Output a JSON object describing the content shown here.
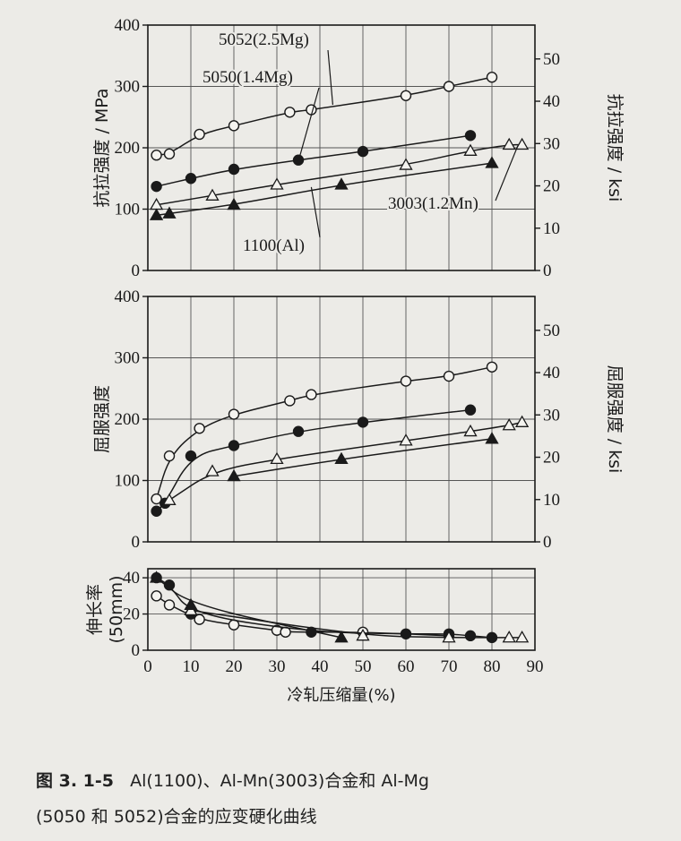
{
  "chart_data": [
    {
      "type": "line",
      "ylabel": "抗拉强度 / MPa",
      "ylabel_right": "抗拉强度 / ksi",
      "xlim": [
        0,
        90
      ],
      "ylim": [
        0,
        400
      ],
      "yticks": [
        0,
        100,
        200,
        300,
        400
      ],
      "ylim_right": [
        0,
        58
      ],
      "yticks_right": [
        0,
        10,
        20,
        30,
        40,
        50
      ],
      "grid": true,
      "series": [
        {
          "name": "5052(2.5Mg)",
          "marker": "open-circle",
          "x": [
            2,
            5,
            12,
            20,
            33,
            38,
            60,
            70,
            80
          ],
          "y": [
            188,
            190,
            222,
            236,
            258,
            262,
            285,
            300,
            315
          ]
        },
        {
          "name": "5050(1.4Mg)",
          "marker": "filled-circle",
          "x": [
            2,
            10,
            20,
            35,
            50,
            75
          ],
          "y": [
            137,
            150,
            165,
            180,
            194,
            220
          ]
        },
        {
          "name": "3003(1.2Mn)",
          "marker": "open-triangle",
          "x": [
            2,
            15,
            30,
            60,
            75,
            84,
            87
          ],
          "y": [
            107,
            122,
            140,
            172,
            195,
            205,
            205
          ]
        },
        {
          "name": "1100(Al)",
          "marker": "filled-triangle",
          "x": [
            2,
            5,
            20,
            45,
            80
          ],
          "y": [
            90,
            93,
            107,
            140,
            175
          ]
        }
      ]
    },
    {
      "type": "line",
      "ylabel": "屈服强度",
      "ylabel_right": "屈服强度 / ksi",
      "xlim": [
        0,
        90
      ],
      "ylim": [
        0,
        400
      ],
      "yticks": [
        0,
        100,
        200,
        300,
        400
      ],
      "ylim_right": [
        0,
        58
      ],
      "yticks_right": [
        0,
        10,
        20,
        30,
        40,
        50
      ],
      "grid": true,
      "series": [
        {
          "marker": "open-circle",
          "x": [
            2,
            5,
            12,
            20,
            33,
            38,
            60,
            70,
            80
          ],
          "y": [
            70,
            140,
            185,
            208,
            230,
            240,
            262,
            270,
            285
          ]
        },
        {
          "marker": "filled-circle",
          "x": [
            2,
            4,
            10,
            20,
            35,
            50,
            75
          ],
          "y": [
            50,
            63,
            140,
            157,
            180,
            195,
            215
          ]
        },
        {
          "marker": "open-triangle",
          "x": [
            5,
            15,
            30,
            60,
            75,
            84,
            87
          ],
          "y": [
            68,
            115,
            135,
            165,
            180,
            190,
            195
          ]
        },
        {
          "marker": "filled-triangle",
          "x": [
            20,
            45,
            80
          ],
          "y": [
            107,
            135,
            168
          ]
        }
      ]
    },
    {
      "type": "line",
      "ylabel": "伸长率",
      "ylabel2": "(50mm)",
      "xlabel": "冷轧压缩量(%)",
      "xlim": [
        0,
        90
      ],
      "xticks": [
        0,
        10,
        20,
        30,
        40,
        50,
        60,
        70,
        80,
        90
      ],
      "ylim": [
        0,
        45
      ],
      "yticks": [
        0,
        20,
        40
      ],
      "grid": true,
      "series": [
        {
          "marker": "open-circle",
          "x": [
            2,
            5,
            12,
            20,
            30,
            32,
            50,
            70
          ],
          "y": [
            30,
            25,
            17,
            14,
            11,
            10,
            10,
            8
          ]
        },
        {
          "marker": "filled-circle",
          "x": [
            2,
            5,
            10,
            38,
            60,
            70,
            75,
            80
          ],
          "y": [
            40,
            36,
            20,
            10,
            9,
            9,
            8,
            7
          ]
        },
        {
          "marker": "open-triangle",
          "x": [
            10,
            50,
            70,
            84,
            87
          ],
          "y": [
            22,
            8,
            7,
            7,
            7
          ]
        },
        {
          "marker": "filled-triangle",
          "x": [
            2,
            10,
            45
          ],
          "y": [
            40,
            25,
            7
          ]
        }
      ]
    }
  ],
  "caption": {
    "line1_fig": "图 3. 1-5",
    "line1_text": "Al(1100)、Al-Mn(3003)合金和 Al-Mg",
    "line2_text": "(5050 和 5052)合金的应变硬化曲线"
  }
}
